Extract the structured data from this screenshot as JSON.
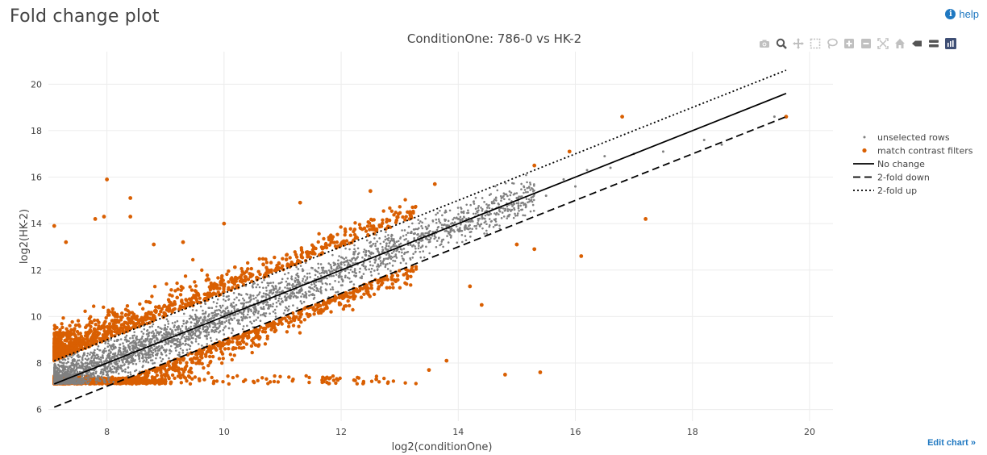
{
  "page": {
    "title": "Fold change plot",
    "help_label": "help",
    "edit_chart_label": "Edit chart »"
  },
  "toolbar": {
    "icons": [
      "camera-icon",
      "zoom-icon",
      "pan-icon",
      "box-select-icon",
      "lasso-select-icon",
      "zoom-in-icon",
      "zoom-out-icon",
      "autoscale-icon",
      "reset-axes-icon",
      "spike-lines-icon",
      "compare-hover-icon",
      "plotly-logo-icon"
    ]
  },
  "chart_data": {
    "type": "scatter",
    "title": "ConditionOne: 786-0 vs HK-2",
    "xlabel": "log2(conditionOne)",
    "ylabel": "log2(HK-2)",
    "xlim": [
      7.0,
      20.4
    ],
    "ylim": [
      5.5,
      21.4
    ],
    "x_ticks": [
      8,
      10,
      12,
      14,
      16,
      18,
      20
    ],
    "y_ticks": [
      6,
      8,
      10,
      12,
      14,
      16,
      18,
      20
    ],
    "grid": true,
    "legend_position": "right",
    "series": [
      {
        "name": "unselected rows",
        "mode": "markers",
        "color": "#808080",
        "points": [
          [
            7.3,
            7.4
          ],
          [
            8,
            8.1
          ],
          [
            9,
            9.1
          ],
          [
            10,
            10
          ],
          [
            11,
            11.1
          ],
          [
            12,
            12.1
          ],
          [
            13,
            13
          ],
          [
            14,
            14.2
          ],
          [
            15,
            15.1
          ],
          [
            15.5,
            15.2
          ],
          [
            15.8,
            15.9
          ],
          [
            16,
            15.6
          ],
          [
            16.2,
            16.3
          ],
          [
            16.5,
            16.9
          ],
          [
            16.6,
            16.4
          ],
          [
            17,
            17
          ],
          [
            17.5,
            17.1
          ],
          [
            18.2,
            17.6
          ],
          [
            18.5,
            17.4
          ],
          [
            19.4,
            18.6
          ]
        ]
      },
      {
        "name": "match contrast filters",
        "mode": "markers",
        "color": "#d95f02",
        "points": [
          [
            7.1,
            13.9
          ],
          [
            7.3,
            13.2
          ],
          [
            8,
            15.9
          ],
          [
            8.4,
            15.1
          ],
          [
            8.4,
            14.3
          ],
          [
            7.8,
            14.2
          ],
          [
            7.95,
            14.3
          ],
          [
            8.8,
            13.1
          ],
          [
            9.3,
            13.2
          ],
          [
            10,
            14
          ],
          [
            11.3,
            14.9
          ],
          [
            12.5,
            15.4
          ],
          [
            13.6,
            15.7
          ],
          [
            15.3,
            16.5
          ],
          [
            15.9,
            17.1
          ],
          [
            17.2,
            14.2
          ],
          [
            16.1,
            12.6
          ],
          [
            14.8,
            7.5
          ],
          [
            15.4,
            7.6
          ],
          [
            13.5,
            7.7
          ],
          [
            13.8,
            8.1
          ],
          [
            12.6,
            7.3
          ],
          [
            11.7,
            7.2
          ],
          [
            14.2,
            11.3
          ],
          [
            14.4,
            10.5
          ],
          [
            15,
            13.1
          ],
          [
            15.3,
            12.9
          ],
          [
            16.8,
            18.6
          ],
          [
            19.6,
            18.6
          ]
        ]
      },
      {
        "name": "No change",
        "mode": "line",
        "dash": "solid",
        "x": [
          7.1,
          19.6
        ],
        "y": [
          7.1,
          19.6
        ]
      },
      {
        "name": "2-fold down",
        "mode": "line",
        "dash": "dash",
        "x": [
          7.1,
          19.6
        ],
        "y": [
          6.1,
          18.6
        ]
      },
      {
        "name": "2-fold up",
        "mode": "line",
        "dash": "dot",
        "x": [
          7.1,
          19.6
        ],
        "y": [
          8.1,
          20.6
        ]
      }
    ]
  }
}
